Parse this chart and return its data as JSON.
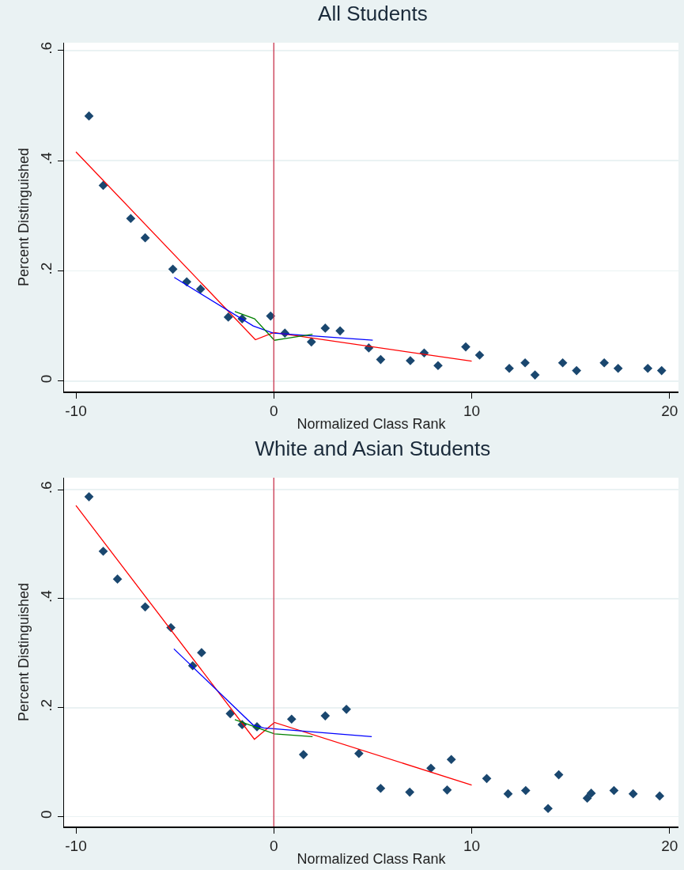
{
  "chart_data": [
    {
      "type": "scatter",
      "title": "All Students",
      "xlabel": "Normalized Class Rank",
      "ylabel": "Percent Distinguished",
      "xlim": [
        -10.6,
        20.45
      ],
      "xticks": [
        -10,
        0,
        10,
        20
      ],
      "ylim": [
        -0.019,
        0.614
      ],
      "yticks": [
        0,
        {
          "value": 0.2,
          "label": ".2"
        },
        {
          "value": 0.4,
          "label": ".4"
        },
        {
          "value": 0.6,
          "label": ".6"
        }
      ],
      "grid": "y",
      "ref_lines": [
        {
          "axis": "x",
          "value": 0,
          "color": "#c8344d"
        }
      ],
      "series": [
        {
          "marker": "diamond",
          "color": "#1a476f",
          "x": [
            -9.34,
            -8.62,
            -7.23,
            -6.5,
            -5.1,
            -4.4,
            -3.7,
            -2.3,
            -1.6,
            -0.16,
            0.56,
            1.9,
            2.6,
            3.35,
            4.8,
            5.4,
            6.9,
            7.6,
            8.3,
            9.7,
            10.4,
            11.9,
            12.7,
            13.2,
            14.6,
            15.3,
            16.7,
            17.4,
            18.9,
            19.6
          ],
          "values": [
            0.481,
            0.355,
            0.295,
            0.26,
            0.203,
            0.18,
            0.167,
            0.116,
            0.113,
            0.118,
            0.087,
            0.071,
            0.096,
            0.091,
            0.06,
            0.039,
            0.037,
            0.051,
            0.028,
            0.062,
            0.047,
            0.023,
            0.033,
            0.011,
            0.033,
            0.019,
            0.033,
            0.023,
            0.023,
            0.019
          ]
        },
        {
          "type": "line",
          "marker": "none",
          "color": "#ff0000",
          "x": [
            -10,
            -0.93,
            0,
            10
          ],
          "values": [
            0.416,
            0.075,
            0.088,
            0.036
          ]
        },
        {
          "type": "line",
          "marker": "none",
          "color": "#0000ff",
          "x": [
            -5.03,
            -1.04,
            -0.04,
            5
          ],
          "values": [
            0.188,
            0.1,
            0.087,
            0.074
          ]
        },
        {
          "type": "line",
          "marker": "none",
          "color": "#008000",
          "x": [
            -1.97,
            -0.97,
            0.03,
            0.56,
            1.96
          ],
          "values": [
            0.126,
            0.113,
            0.074,
            0.077,
            0.085
          ]
        }
      ]
    },
    {
      "type": "scatter",
      "title": "White and Asian Students",
      "xlabel": "Normalized Class Rank",
      "ylabel": "Percent Distinguished",
      "xlim": [
        -10.6,
        20.45
      ],
      "xticks": [
        -10,
        0,
        10,
        20
      ],
      "ylim": [
        -0.018,
        0.622
      ],
      "yticks": [
        0,
        {
          "value": 0.2,
          "label": ".2"
        },
        {
          "value": 0.4,
          "label": ".4"
        },
        {
          "value": 0.6,
          "label": ".6"
        }
      ],
      "grid": "y",
      "ref_lines": [
        {
          "axis": "x",
          "value": 0,
          "color": "#c8344d"
        }
      ],
      "series": [
        {
          "marker": "diamond",
          "color": "#1a476f",
          "x": [
            -9.34,
            -8.62,
            -7.9,
            -6.5,
            -5.2,
            -4.1,
            -3.65,
            -2.2,
            -1.6,
            -0.85,
            0.9,
            1.5,
            2.6,
            3.67,
            4.3,
            5.4,
            6.87,
            7.94,
            8.76,
            8.97,
            10.76,
            11.84,
            12.73,
            13.86,
            14.4,
            15.84,
            16.04,
            17.19,
            18.16,
            19.5
          ],
          "values": [
            0.587,
            0.487,
            0.436,
            0.385,
            0.347,
            0.277,
            0.301,
            0.189,
            0.169,
            0.165,
            0.179,
            0.114,
            0.185,
            0.197,
            0.116,
            0.052,
            0.045,
            0.089,
            0.049,
            0.105,
            0.07,
            0.042,
            0.048,
            0.015,
            0.077,
            0.034,
            0.043,
            0.048,
            0.042,
            0.038
          ]
        },
        {
          "type": "line",
          "marker": "none",
          "color": "#ff0000",
          "x": [
            -10,
            -0.98,
            0.03,
            10
          ],
          "values": [
            0.571,
            0.142,
            0.173,
            0.058
          ]
        },
        {
          "type": "line",
          "marker": "none",
          "color": "#0000ff",
          "x": [
            -5.05,
            -1.04,
            -0.51,
            4.95
          ],
          "values": [
            0.308,
            0.168,
            0.163,
            0.147
          ]
        },
        {
          "type": "line",
          "marker": "none",
          "color": "#008000",
          "x": [
            -1.97,
            0.03,
            1.96
          ],
          "values": [
            0.178,
            0.152,
            0.147
          ]
        }
      ]
    }
  ]
}
